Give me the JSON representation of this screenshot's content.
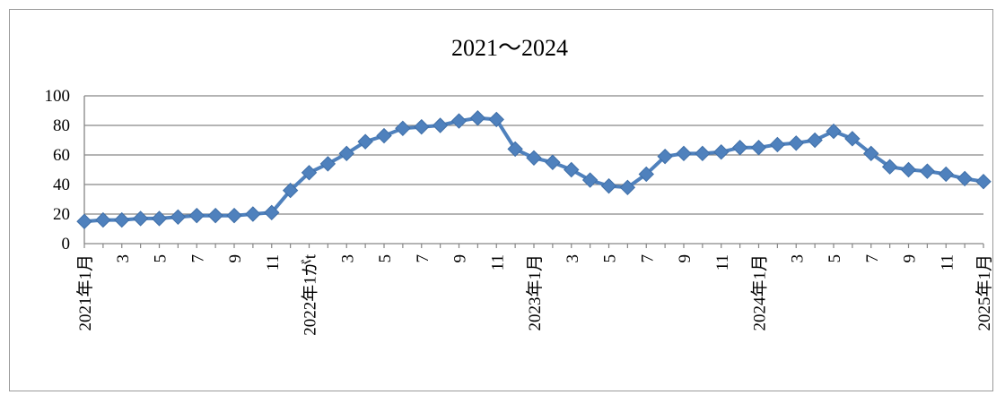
{
  "chart_data": {
    "type": "line",
    "title": "2021～2024",
    "xlabel": "",
    "ylabel": "",
    "ylim": [
      0,
      100
    ],
    "yticks": [
      0,
      20,
      40,
      60,
      80,
      100
    ],
    "grid": true,
    "legend": "none",
    "colors": {
      "series": "#4F81BD",
      "grid": "#868686",
      "frame": "#9a9a9a"
    },
    "marker": "diamond",
    "x_labels": [
      "2021年1月",
      "",
      "3",
      "",
      "5",
      "",
      "7",
      "",
      "9",
      "",
      "11",
      "",
      "2022年1がt",
      "",
      "3",
      "",
      "5",
      "",
      "7",
      "",
      "9",
      "",
      "11",
      "",
      "2023年1月",
      "",
      "3",
      "",
      "5",
      "",
      "7",
      "",
      "9",
      "",
      "11",
      "",
      "2024年1月",
      "",
      "3",
      "",
      "5",
      "",
      "7",
      "",
      "9",
      "",
      "11",
      "",
      "2025年1月"
    ],
    "series": [
      {
        "values": [
          15,
          16,
          16,
          17,
          17,
          18,
          19,
          19,
          19,
          20,
          21,
          36,
          48,
          54,
          61,
          69,
          73,
          78,
          79,
          80,
          83,
          85,
          84,
          64,
          58,
          55,
          50,
          43,
          39,
          38,
          47,
          59,
          61,
          61,
          62,
          65,
          65,
          67,
          68,
          70,
          76,
          71,
          61,
          52,
          50,
          49,
          47,
          44,
          42
        ]
      }
    ]
  }
}
